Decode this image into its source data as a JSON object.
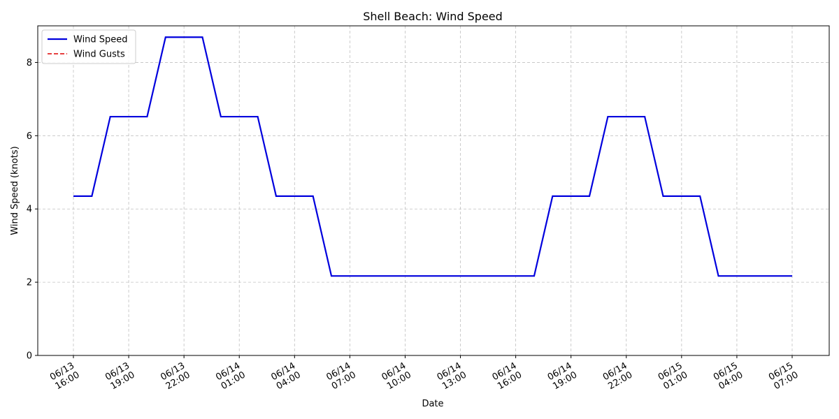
{
  "chart_data": {
    "type": "line",
    "title": "Shell Beach: Wind Speed",
    "xlabel": "Date",
    "ylabel": "Wind Speed (knots)",
    "ylim": [
      0,
      9
    ],
    "yticks": [
      0,
      2,
      4,
      6,
      8
    ],
    "x_ticks": [
      {
        "hour": 0,
        "label": [
          "06/13",
          "16:00"
        ]
      },
      {
        "hour": 3,
        "label": [
          "06/13",
          "19:00"
        ]
      },
      {
        "hour": 6,
        "label": [
          "06/13",
          "22:00"
        ]
      },
      {
        "hour": 9,
        "label": [
          "06/14",
          "01:00"
        ]
      },
      {
        "hour": 12,
        "label": [
          "06/14",
          "04:00"
        ]
      },
      {
        "hour": 15,
        "label": [
          "06/14",
          "07:00"
        ]
      },
      {
        "hour": 18,
        "label": [
          "06/14",
          "10:00"
        ]
      },
      {
        "hour": 21,
        "label": [
          "06/14",
          "13:00"
        ]
      },
      {
        "hour": 24,
        "label": [
          "06/14",
          "16:00"
        ]
      },
      {
        "hour": 27,
        "label": [
          "06/14",
          "19:00"
        ]
      },
      {
        "hour": 30,
        "label": [
          "06/14",
          "22:00"
        ]
      },
      {
        "hour": 33,
        "label": [
          "06/15",
          "01:00"
        ]
      },
      {
        "hour": 36,
        "label": [
          "06/15",
          "04:00"
        ]
      },
      {
        "hour": 39,
        "label": [
          "06/15",
          "07:00"
        ]
      }
    ],
    "grid": true,
    "legend_position": "top-left",
    "series": [
      {
        "name": "Wind Speed",
        "color": "#0000dd",
        "style": "solid",
        "x": [
          "06/13 16:00",
          "06/13 17:00",
          "06/13 18:00",
          "06/13 19:00",
          "06/13 20:00",
          "06/13 21:00",
          "06/13 22:00",
          "06/13 23:00",
          "06/14 00:00",
          "06/14 01:00",
          "06/14 02:00",
          "06/14 03:00",
          "06/14 04:00",
          "06/14 05:00",
          "06/14 06:00",
          "06/14 07:00",
          "06/14 08:00",
          "06/14 09:00",
          "06/14 10:00",
          "06/14 11:00",
          "06/14 12:00",
          "06/14 13:00",
          "06/14 14:00",
          "06/14 15:00",
          "06/14 16:00",
          "06/14 17:00",
          "06/14 18:00",
          "06/14 19:00",
          "06/14 20:00",
          "06/14 21:00",
          "06/14 22:00",
          "06/14 23:00",
          "06/15 00:00",
          "06/15 01:00",
          "06/15 02:00",
          "06/15 03:00",
          "06/15 04:00",
          "06/15 05:00",
          "06/15 06:00",
          "06/15 07:00"
        ],
        "values": [
          4.35,
          4.35,
          6.52,
          6.52,
          6.52,
          8.69,
          8.69,
          8.69,
          6.52,
          6.52,
          6.52,
          4.35,
          4.35,
          4.35,
          2.17,
          2.17,
          2.17,
          2.17,
          2.17,
          2.17,
          2.17,
          2.17,
          2.17,
          2.17,
          2.17,
          2.17,
          4.35,
          4.35,
          4.35,
          6.52,
          6.52,
          6.52,
          4.35,
          4.35,
          4.35,
          2.17,
          2.17,
          2.17,
          2.17,
          2.17
        ]
      },
      {
        "name": "Wind Gusts",
        "color": "#dd0000",
        "style": "dashed",
        "x": [],
        "values": []
      }
    ]
  }
}
